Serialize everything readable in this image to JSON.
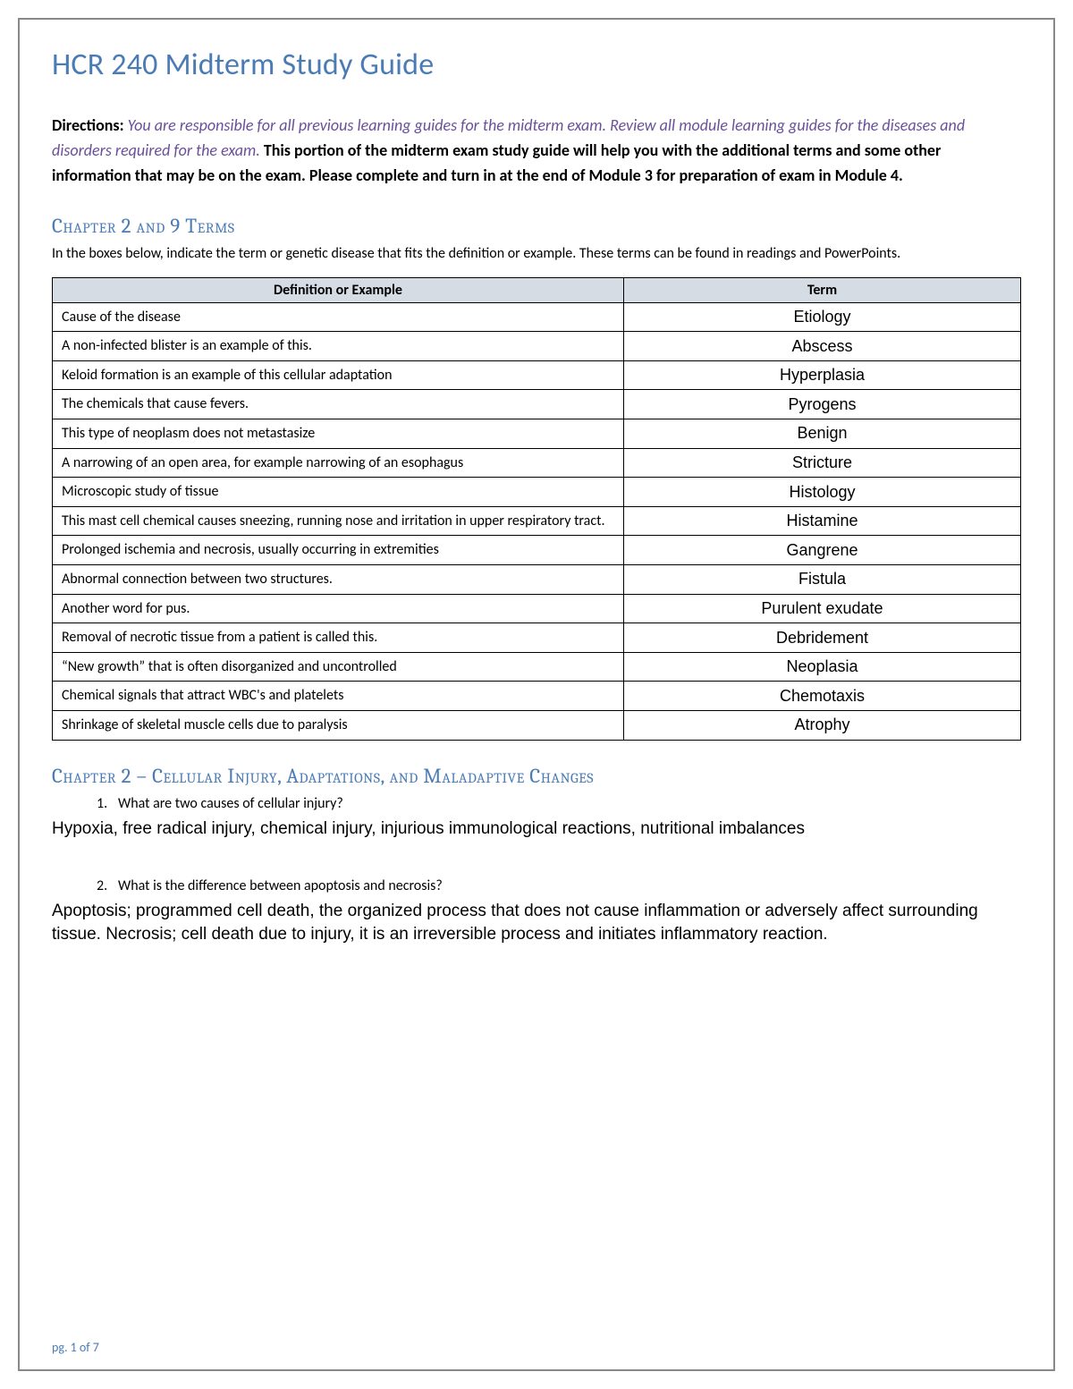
{
  "title": "HCR 240 Midterm Study Guide",
  "directions": {
    "label": "Directions:",
    "italic": "You are responsible for all previous learning guides for the midterm exam. Review all module learning guides for the diseases and disorders required for the exam.",
    "bold": "This portion of the midterm exam study guide will help you with the additional terms and some other information that may be on the exam. Please complete and turn in at the end of Module 3 for preparation of exam in Module 4."
  },
  "section1": {
    "heading": "Chapter 2 and 9 Terms",
    "intro": "In the boxes below, indicate the term or genetic disease that fits the definition or example. These terms can be found in readings and PowerPoints.",
    "columns": [
      "Definition or Example",
      "Term"
    ],
    "rows": [
      {
        "def": "Cause of the disease",
        "term": "Etiology"
      },
      {
        "def": "A non-infected blister is an example of this.",
        "term": "Abscess"
      },
      {
        "def": "Keloid formation is an example of this cellular adaptation",
        "term": "Hyperplasia"
      },
      {
        "def": "The chemicals that cause fevers.",
        "term": "Pyrogens"
      },
      {
        "def": "This type of neoplasm does not metastasize",
        "term": "Benign"
      },
      {
        "def": "A narrowing of an open area, for example narrowing of an esophagus",
        "term": "Stricture"
      },
      {
        "def": "Microscopic study of tissue",
        "term": "Histology"
      },
      {
        "def": "This mast cell chemical causes sneezing, running nose and irritation in upper respiratory tract.",
        "term": "Histamine"
      },
      {
        "def": "Prolonged ischemia and necrosis, usually occurring in extremities",
        "term": "Gangrene"
      },
      {
        "def": "Abnormal connection between two structures.",
        "term": "Fistula"
      },
      {
        "def": "Another word for pus.",
        "term": "Purulent exudate"
      },
      {
        "def": "Removal of necrotic tissue from a patient is called this.",
        "term": "Debridement"
      },
      {
        "def": "“New growth” that is often disorganized and uncontrolled",
        "term": "Neoplasia"
      },
      {
        "def": "Chemical signals that attract WBC's and platelets",
        "term": "Chemotaxis"
      },
      {
        "def": "Shrinkage of skeletal muscle cells due to paralysis",
        "term": "Atrophy"
      }
    ]
  },
  "section2": {
    "heading": "Chapter 2 – Cellular Injury, Adaptations, and Maladaptive Changes",
    "questions": [
      {
        "num": "1.",
        "q": "What are two causes of cellular injury?",
        "a": "Hypoxia, free radical injury, chemical injury, injurious immunological reactions, nutritional imbalances"
      },
      {
        "num": "2.",
        "q": "What is the difference between apoptosis and necrosis?",
        "a": "Apoptosis; programmed cell death, the organized process that does not cause inflammation or adversely affect surrounding tissue. Necrosis; cell death due to injury, it is an irreversible process and initiates inflammatory reaction."
      }
    ]
  },
  "footer": "pg. 1 of 7",
  "colors": {
    "heading_blue": "#4a7bb5",
    "italic_purple": "#6a4f9b",
    "table_header_bg": "#d5dce4",
    "border_gray": "#888888"
  }
}
